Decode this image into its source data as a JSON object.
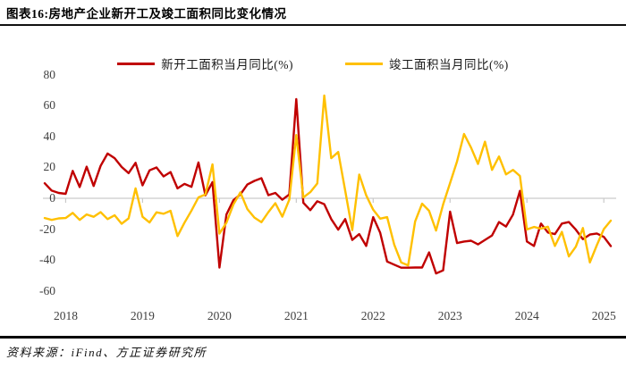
{
  "title": "图表16:房地产企业新开工及竣工面积同比变化情况",
  "source": "资料来源：iFind、方正证券研究所",
  "colors": {
    "new_starts": "#c00000",
    "completions": "#ffc000",
    "axis_line": "#c9c9c9",
    "tick_text": "#3f3f3f",
    "rule": "#000000"
  },
  "chart_data": {
    "type": "line",
    "title": "房地产企业新开工及竣工面积同比变化情况",
    "ylabel": "同比(%)",
    "ylim": [
      -60,
      80
    ],
    "y_ticks": [
      80,
      60,
      40,
      20,
      0,
      -20,
      -40,
      -60
    ],
    "x_tick_labels": [
      "2018",
      "2019",
      "2020",
      "2021",
      "2022",
      "2023",
      "2024",
      "2025"
    ],
    "grid": "zero-line-only",
    "legend_position": "top-center",
    "months": [
      "2017-10",
      "2017-11",
      "2017-12",
      "2018-02",
      "2018-03",
      "2018-04",
      "2018-05",
      "2018-06",
      "2018-07",
      "2018-08",
      "2018-09",
      "2018-10",
      "2018-11",
      "2018-12",
      "2019-02",
      "2019-03",
      "2019-04",
      "2019-05",
      "2019-06",
      "2019-07",
      "2019-08",
      "2019-09",
      "2019-10",
      "2019-11",
      "2019-12",
      "2020-02",
      "2020-03",
      "2020-04",
      "2020-05",
      "2020-06",
      "2020-07",
      "2020-08",
      "2020-09",
      "2020-10",
      "2020-11",
      "2020-12",
      "2021-02",
      "2021-03",
      "2021-04",
      "2021-05",
      "2021-06",
      "2021-07",
      "2021-08",
      "2021-09",
      "2021-10",
      "2021-11",
      "2021-12",
      "2022-02",
      "2022-03",
      "2022-04",
      "2022-05",
      "2022-06",
      "2022-07",
      "2022-08",
      "2022-09",
      "2022-10",
      "2022-11",
      "2022-12",
      "2023-02",
      "2023-03",
      "2023-04",
      "2023-05",
      "2023-06",
      "2023-07",
      "2023-08",
      "2023-09",
      "2023-10",
      "2023-11",
      "2023-12",
      "2024-02",
      "2024-03",
      "2024-04",
      "2024-05",
      "2024-06",
      "2024-07",
      "2024-08",
      "2024-09",
      "2024-10",
      "2024-11",
      "2024-12",
      "2025-02",
      "2025-03"
    ],
    "series": [
      {
        "name": "新开工面积当月同比(%)",
        "color": "#c00000",
        "values": [
          9.7,
          5.0,
          3.5,
          2.9,
          17.8,
          7.3,
          20.5,
          8.0,
          21.0,
          29.0,
          26.0,
          20.3,
          16.3,
          23.0,
          8.4,
          18.1,
          20.0,
          14.2,
          17.0,
          6.4,
          9.3,
          7.4,
          23.2,
          1.9,
          10.5,
          -44.9,
          -10.5,
          -1.3,
          2.5,
          8.9,
          11.3,
          13.0,
          2.0,
          3.5,
          -0.9,
          2.5,
          64.3,
          -2.9,
          -7.7,
          -1.9,
          -3.8,
          -13.5,
          -20.3,
          -13.5,
          -27.0,
          -23.2,
          -30.9,
          -12.2,
          -22.3,
          -41.0,
          -43.0,
          -45.0,
          -45.0,
          -44.9,
          -44.9,
          -35.1,
          -48.7,
          -46.7,
          -8.7,
          -29.0,
          -28.0,
          -27.5,
          -29.9,
          -27.0,
          -24.1,
          -15.4,
          -18.3,
          -10.6,
          4.8,
          -28.0,
          -30.9,
          -16.4,
          -22.2,
          -23.2,
          -16.4,
          -15.4,
          -20.3,
          -26.5,
          -23.5,
          -22.8,
          -25.0,
          -31.0
        ]
      },
      {
        "name": "竣工面积当月同比(%)",
        "color": "#ffc000",
        "values": [
          -12.8,
          -14.0,
          -13.0,
          -12.8,
          -9.5,
          -14.0,
          -10.5,
          -12.0,
          -9.0,
          -13.5,
          -11.0,
          -16.5,
          -13.0,
          6.4,
          -12.0,
          -15.7,
          -9.1,
          -10.0,
          -8.1,
          -24.5,
          -15.8,
          -8.0,
          0.6,
          2.5,
          22.0,
          -22.9,
          -15.8,
          -4.0,
          3.8,
          -7.0,
          -12.5,
          -15.5,
          -9.0,
          -3.2,
          -11.9,
          -0.9,
          41.0,
          0.5,
          4.0,
          9.6,
          66.6,
          26.0,
          30.0,
          5.0,
          -20.6,
          15.4,
          1.9,
          -7.4,
          -13.2,
          -12.2,
          -30.0,
          -41.6,
          -43.5,
          -15.0,
          -3.5,
          -8.1,
          -20.9,
          -4.0,
          9.9,
          24.0,
          41.7,
          32.9,
          22.3,
          36.7,
          18.4,
          27.1,
          15.5,
          18.4,
          14.5,
          -20.2,
          -18.6,
          -19.7,
          -18.4,
          -30.9,
          -21.8,
          -37.7,
          -31.4,
          -19.3,
          -41.6,
          -30.4,
          -20.0,
          -14.5
        ]
      }
    ]
  }
}
